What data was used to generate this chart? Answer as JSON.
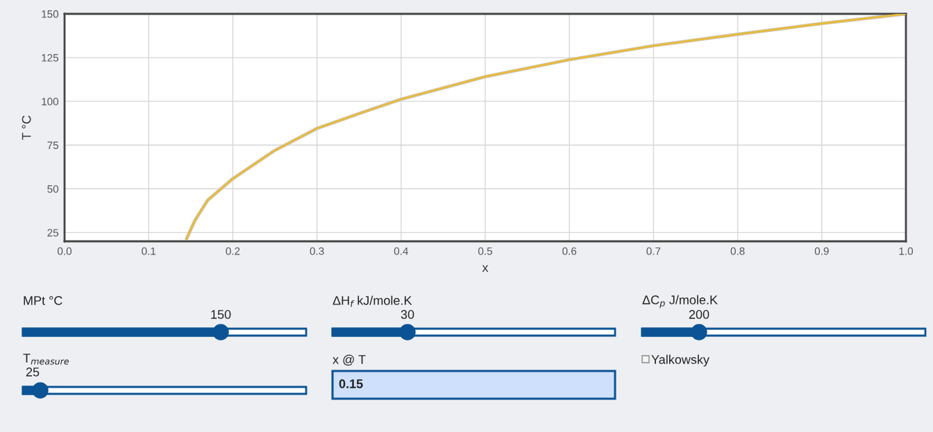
{
  "chart_data": [
    {
      "type": "line",
      "xlabel": "x",
      "ylabel": "T °C",
      "xlim": [
        0,
        1
      ],
      "ylim": [
        20,
        150
      ],
      "xticks": [
        {
          "value": 0,
          "label": "0.0"
        },
        0.1,
        0.2,
        0.3,
        0.4,
        0.5,
        0.6,
        0.7,
        0.8,
        0.9,
        {
          "value": 1,
          "label": "1.0"
        }
      ],
      "yticks": [
        25,
        50,
        75,
        100,
        125,
        150
      ],
      "grid": true,
      "series": [
        {
          "color": "#e8bb3e",
          "x": [
            0.145,
            0.155,
            0.17,
            0.2,
            0.25,
            0.3,
            0.35,
            0.4,
            0.5,
            0.6,
            0.7,
            0.8,
            0.9,
            1.0
          ],
          "values": [
            21.5,
            32,
            43.4,
            55.8,
            72,
            84.5,
            93,
            101.2,
            114.1,
            123.8,
            131.8,
            138.3,
            144.5,
            150
          ]
        }
      ]
    },
    {
      "type": "other",
      "annotations": [
        "MPt °C",
        "150",
        "ΔH$_{f}$ kJ/mole.K",
        "30",
        "ΔC$_{p}$ J/mole.K",
        "200",
        "T$_{measure}$",
        "25",
        "x @ T",
        "0.15",
        "Yalkowsky"
      ]
    }
  ]
}
